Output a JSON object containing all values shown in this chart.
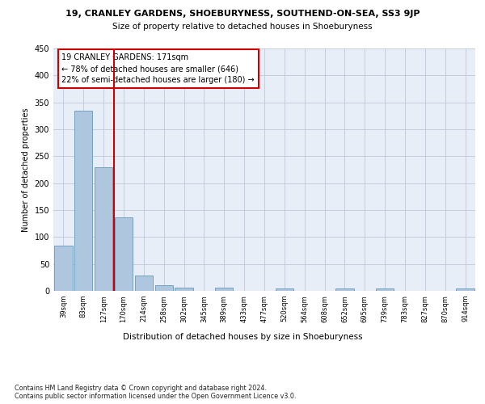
{
  "title1": "19, CRANLEY GARDENS, SHOEBURYNESS, SOUTHEND-ON-SEA, SS3 9JP",
  "title2": "Size of property relative to detached houses in Shoeburyness",
  "xlabel": "Distribution of detached houses by size in Shoeburyness",
  "ylabel": "Number of detached properties",
  "footnote": "Contains HM Land Registry data © Crown copyright and database right 2024.\nContains public sector information licensed under the Open Government Licence v3.0.",
  "categories": [
    "39sqm",
    "83sqm",
    "127sqm",
    "170sqm",
    "214sqm",
    "258sqm",
    "302sqm",
    "345sqm",
    "389sqm",
    "433sqm",
    "477sqm",
    "520sqm",
    "564sqm",
    "608sqm",
    "652sqm",
    "695sqm",
    "739sqm",
    "783sqm",
    "827sqm",
    "870sqm",
    "914sqm"
  ],
  "values": [
    84,
    334,
    230,
    137,
    29,
    11,
    6,
    0,
    6,
    0,
    0,
    5,
    0,
    0,
    5,
    0,
    5,
    0,
    0,
    0,
    5
  ],
  "bar_color": "#aec6de",
  "bar_edge_color": "#6699bb",
  "red_line_color": "#cc0000",
  "red_line_index": 3,
  "annotation_title": "19 CRANLEY GARDENS: 171sqm",
  "annotation_line1": "← 78% of detached houses are smaller (646)",
  "annotation_line2": "22% of semi-detached houses are larger (180) →",
  "annotation_box_color": "#cc0000",
  "ylim": [
    0,
    450
  ],
  "yticks": [
    0,
    50,
    100,
    150,
    200,
    250,
    300,
    350,
    400,
    450
  ],
  "bg_color": "#ffffff",
  "plot_bg_color": "#e8eef8",
  "grid_color": "#c0c8d8"
}
